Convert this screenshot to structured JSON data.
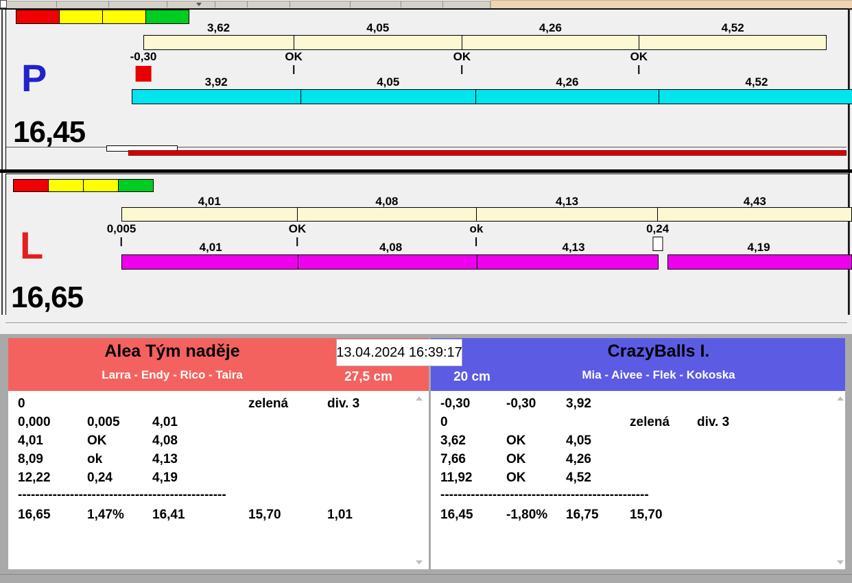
{
  "colors": {
    "status_strip": [
      "#f00000",
      "#ffff00",
      "#ffff00",
      "#00cc22"
    ],
    "cream_bar": "#fcf8d2",
    "cyan_bar": "#00e4ee",
    "magenta_bar": "#ee00ee",
    "red_marker": "#e60000",
    "progress_red": "#d80000",
    "lane_p_letter": "#2222cc",
    "lane_l_letter": "#e02020",
    "team_left_bg": "#f4625f",
    "team_right_bg": "#5b5be4",
    "toolbar_beige": "#eed4b2"
  },
  "lane_p": {
    "letter": "P",
    "total": "16,45",
    "upper_segments": [
      {
        "label": "3,62",
        "v": 3.62
      },
      {
        "label": "4,05",
        "v": 4.05
      },
      {
        "label": "4,26",
        "v": 4.26
      },
      {
        "label": "4,52",
        "v": 4.52
      }
    ],
    "markers": [
      {
        "text": "-0,30",
        "at": 0,
        "icon": "red-square"
      },
      {
        "text": "OK",
        "at": 1,
        "tick": true
      },
      {
        "text": "OK",
        "at": 2,
        "tick": true
      },
      {
        "text": "OK",
        "at": 3,
        "tick": true
      }
    ],
    "lower_segments": [
      {
        "label": "3,92",
        "v": 3.92
      },
      {
        "label": "4,05",
        "v": 4.05
      },
      {
        "label": "4,26",
        "v": 4.26
      },
      {
        "label": "4,52",
        "v": 4.52
      }
    ]
  },
  "lane_l": {
    "letter": "L",
    "total": "16,65",
    "upper_segments": [
      {
        "label": "4,01",
        "v": 4.01
      },
      {
        "label": "4,08",
        "v": 4.08
      },
      {
        "label": "4,13",
        "v": 4.13
      },
      {
        "label": "4,43",
        "v": 4.43
      }
    ],
    "markers": [
      {
        "text": "0,005",
        "at": 0,
        "tick": true
      },
      {
        "text": "OK",
        "at": 1,
        "tick": true
      },
      {
        "text": "ok",
        "at": 2,
        "tick": true
      },
      {
        "text": "0,24",
        "at": 3,
        "icon": "white-box"
      }
    ],
    "lower_segments": [
      {
        "label": "4,01",
        "v": 4.01
      },
      {
        "label": "4,08",
        "v": 4.08
      },
      {
        "label": "4,13",
        "v": 4.13
      },
      {
        "label": "4,19",
        "v": 4.19
      }
    ],
    "lower_gap_before_last": true
  },
  "scoreboard": {
    "datetime": "13.04.2024 16:39:17",
    "left_team": {
      "name": "Alea Tým naděje",
      "members": "Larra - Endy - Rico - Taira",
      "height": "27,5 cm",
      "rows": [
        [
          "0",
          "",
          "",
          "zelená",
          "div. 3"
        ],
        [
          "0,000",
          "0,005",
          "4,01",
          "",
          ""
        ],
        [
          "4,01",
          "OK",
          "4,08",
          "",
          ""
        ],
        [
          "8,09",
          "ok",
          "4,13",
          "",
          ""
        ],
        [
          "12,22",
          "0,24",
          "4,19",
          "",
          ""
        ]
      ],
      "divider": "------------------------------------------------",
      "summary": [
        "16,65",
        "1,47%",
        "16,41",
        "15,70",
        "1,01"
      ]
    },
    "right_team": {
      "name": "CrazyBalls I.",
      "members": "Mia - Aivee - Flek - Kokoska",
      "height": "20 cm",
      "rows": [
        [
          "-0,30",
          "-0,30",
          "3,92",
          "",
          ""
        ],
        [
          "0",
          "",
          "",
          "zelená",
          "div. 3"
        ],
        [
          "3,62",
          "OK",
          "4,05",
          "",
          ""
        ],
        [
          "7,66",
          "OK",
          "4,26",
          "",
          ""
        ],
        [
          "11,92",
          "OK",
          "4,52",
          "",
          ""
        ]
      ],
      "divider": "------------------------------------------------",
      "summary": [
        "16,45",
        "-1,80%",
        "16,75",
        "15,70",
        ""
      ]
    }
  }
}
